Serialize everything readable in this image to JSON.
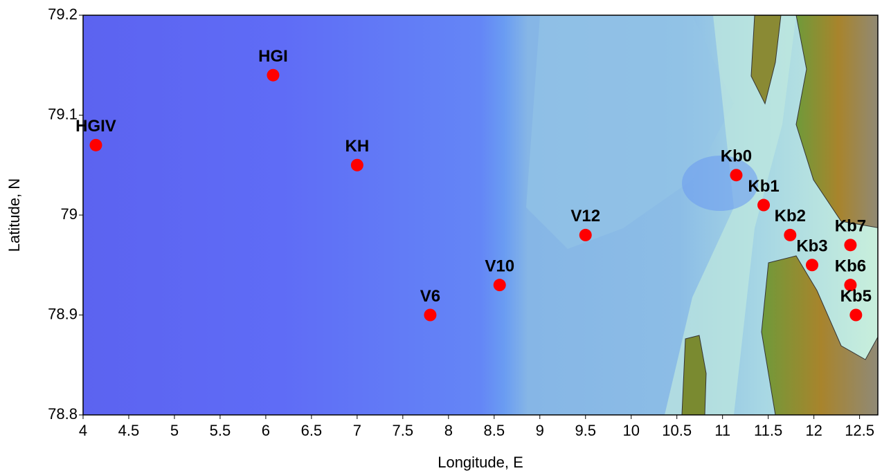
{
  "chart_data": {
    "type": "scatter",
    "xlabel": "Longitude, E",
    "ylabel": "Latitude, N",
    "xlim": [
      4,
      12.7
    ],
    "ylim": [
      78.8,
      79.2
    ],
    "xticks": [
      4,
      4.5,
      5,
      5.5,
      6,
      6.5,
      7,
      7.5,
      8,
      8.5,
      9,
      9.5,
      10,
      10.5,
      11,
      11.5,
      12,
      12.5
    ],
    "yticks": [
      78.8,
      78.9,
      79,
      79.1,
      79.2
    ],
    "color": "#ff0000",
    "labels": [
      "HGIV",
      "HGI",
      "KH",
      "V6",
      "V10",
      "V12",
      "Kb0",
      "Kb1",
      "Kb2",
      "Kb3",
      "Kb7",
      "Kb6",
      "Kb5"
    ],
    "x": [
      4.14,
      6.08,
      7.0,
      7.8,
      8.56,
      9.5,
      11.15,
      11.45,
      11.74,
      11.98,
      12.4,
      12.4,
      12.46
    ],
    "y": [
      79.07,
      79.14,
      79.05,
      78.9,
      78.93,
      78.98,
      79.04,
      79.01,
      78.98,
      78.95,
      78.97,
      78.93,
      78.9
    ]
  }
}
